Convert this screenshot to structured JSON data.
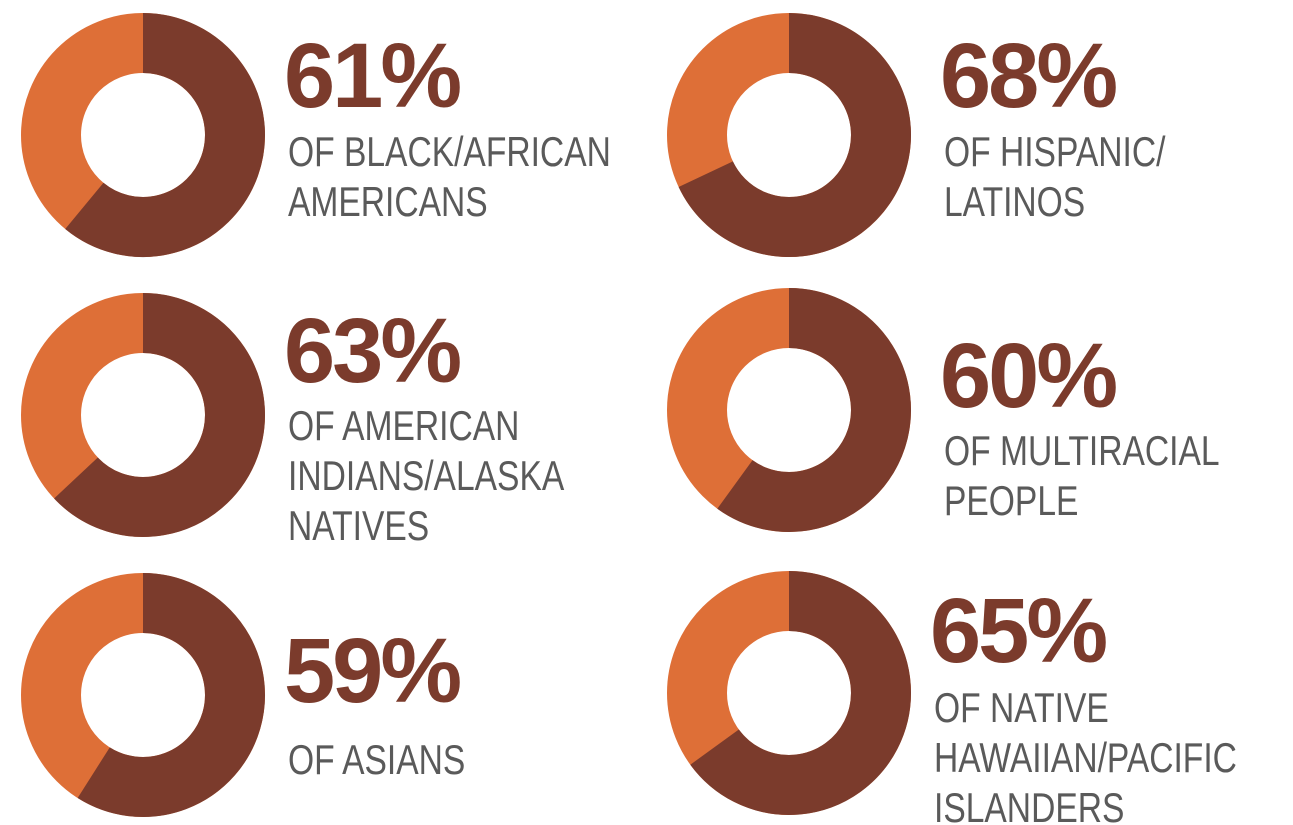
{
  "chart_data": [
    {
      "type": "pie",
      "values": [
        61
      ],
      "value_labels": [
        "61%"
      ],
      "label": [
        "OF BLACK/AFRICAN",
        "AMERICANS"
      ],
      "color": "#7b3b2c",
      "track_color": "#de6f37"
    },
    {
      "type": "pie",
      "values": [
        68
      ],
      "value_labels": [
        "68%"
      ],
      "label": [
        "OF HISPANIC/",
        "LATINOS"
      ],
      "color": "#7b3b2c",
      "track_color": "#de6f37"
    },
    {
      "type": "pie",
      "values": [
        63
      ],
      "value_labels": [
        "63%"
      ],
      "label": [
        "OF AMERICAN",
        "INDIANS/ALASKA",
        "NATIVES"
      ],
      "color": "#7b3b2c",
      "track_color": "#de6f37"
    },
    {
      "type": "pie",
      "values": [
        60
      ],
      "value_labels": [
        "60%"
      ],
      "label": [
        "OF MULTIRACIAL",
        "PEOPLE"
      ],
      "color": "#7b3b2c",
      "track_color": "#de6f37"
    },
    {
      "type": "pie",
      "values": [
        59
      ],
      "value_labels": [
        "59%"
      ],
      "label": [
        "OF ASIANS"
      ],
      "color": "#7b3b2c",
      "track_color": "#de6f37"
    },
    {
      "type": "pie",
      "values": [
        65
      ],
      "value_labels": [
        "65%"
      ],
      "label": [
        "OF NATIVE",
        "HAWAIIAN/PACIFIC",
        "ISLANDERS"
      ],
      "color": "#7b3b2c",
      "track_color": "#de6f37"
    }
  ]
}
